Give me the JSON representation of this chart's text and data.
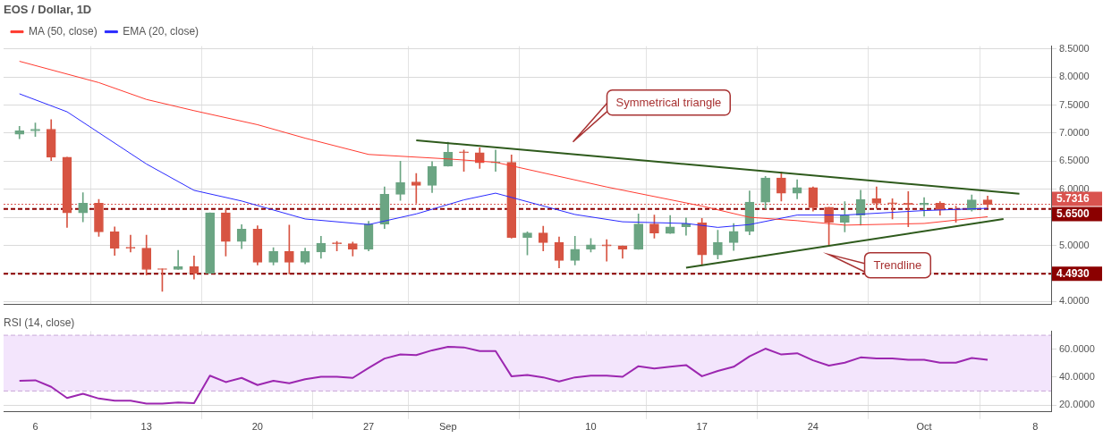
{
  "chart_data": [
    {
      "type": "candlestick",
      "title": "EOS / Dollar, 1D",
      "x": [
        "--08-05",
        "--08-06",
        "--08-07",
        "--08-08",
        "--08-09",
        "--08-10",
        "--08-11",
        "--08-12",
        "--08-13",
        "--08-14",
        "--08-15",
        "--08-16",
        "--08-17",
        "--08-18",
        "--08-19",
        "--08-20",
        "--08-21",
        "--08-22",
        "--08-23",
        "--08-24",
        "--08-25",
        "--08-26",
        "--08-27",
        "--08-28",
        "--08-29",
        "--08-30",
        "--08-31",
        "--09-01",
        "--09-02",
        "--09-03",
        "--09-04",
        "--09-05",
        "--09-06",
        "--09-07",
        "--09-08",
        "--09-09",
        "--09-10",
        "--09-11",
        "--09-12",
        "--09-13",
        "--09-14",
        "--09-15",
        "--09-16",
        "--09-17",
        "--09-18",
        "--09-19",
        "--09-20",
        "--09-21",
        "--09-22",
        "--09-23",
        "--09-24",
        "--09-25",
        "--09-26",
        "--09-27",
        "--09-28",
        "--09-29",
        "--09-30",
        "--10-01",
        "--10-02",
        "--10-03",
        "--10-04",
        "--10-05"
      ],
      "ohlc": [
        [
          6.98,
          7.12,
          6.9,
          7.04
        ],
        [
          7.04,
          7.18,
          6.94,
          7.07
        ],
        [
          7.07,
          7.24,
          6.51,
          6.57
        ],
        [
          6.57,
          6.57,
          5.32,
          5.58
        ],
        [
          5.58,
          5.94,
          5.42,
          5.75
        ],
        [
          5.75,
          5.82,
          5.16,
          5.24
        ],
        [
          5.24,
          5.33,
          4.82,
          4.95
        ],
        [
          4.96,
          5.18,
          4.88,
          4.95
        ],
        [
          4.95,
          5.18,
          4.47,
          4.57
        ],
        [
          4.58,
          4.58,
          4.18,
          4.57
        ],
        [
          4.57,
          4.91,
          4.57,
          4.62
        ],
        [
          4.62,
          4.81,
          4.4,
          4.5
        ],
        [
          4.5,
          5.58,
          4.5,
          5.58
        ],
        [
          5.58,
          5.65,
          4.81,
          5.07
        ],
        [
          5.07,
          5.37,
          4.94,
          5.29
        ],
        [
          5.29,
          5.35,
          4.65,
          4.7
        ],
        [
          4.7,
          4.96,
          4.65,
          4.89
        ],
        [
          4.89,
          5.36,
          4.49,
          4.7
        ],
        [
          4.7,
          4.95,
          4.67,
          4.89
        ],
        [
          4.88,
          5.16,
          4.77,
          5.04
        ],
        [
          5.04,
          5.07,
          4.9,
          5.03
        ],
        [
          5.03,
          5.06,
          4.81,
          4.93
        ],
        [
          4.93,
          5.43,
          4.9,
          5.38
        ],
        [
          5.38,
          6.04,
          5.3,
          5.91
        ],
        [
          5.91,
          6.5,
          5.8,
          6.12
        ],
        [
          6.13,
          6.28,
          5.75,
          6.07
        ],
        [
          6.07,
          6.49,
          5.94,
          6.41
        ],
        [
          6.41,
          6.84,
          6.41,
          6.66
        ],
        [
          6.66,
          6.7,
          6.32,
          6.65
        ],
        [
          6.65,
          6.74,
          6.37,
          6.47
        ],
        [
          6.47,
          6.7,
          6.32,
          6.48
        ],
        [
          6.48,
          6.61,
          5.13,
          5.14
        ],
        [
          5.14,
          5.24,
          4.83,
          5.22
        ],
        [
          5.22,
          5.34,
          4.9,
          5.05
        ],
        [
          5.05,
          5.15,
          4.6,
          4.73
        ],
        [
          4.73,
          5.16,
          4.65,
          4.93
        ],
        [
          4.93,
          5.12,
          4.88,
          5.01
        ],
        [
          5.01,
          5.1,
          4.72,
          4.99
        ],
        [
          4.99,
          4.99,
          4.77,
          4.93
        ],
        [
          4.93,
          5.56,
          4.93,
          5.38
        ],
        [
          5.38,
          5.54,
          5.13,
          5.22
        ],
        [
          5.21,
          5.53,
          5.21,
          5.33
        ],
        [
          5.33,
          5.49,
          5.18,
          5.39
        ],
        [
          5.4,
          5.48,
          4.64,
          4.83
        ],
        [
          4.83,
          5.27,
          4.76,
          5.05
        ],
        [
          5.05,
          5.39,
          4.91,
          5.25
        ],
        [
          5.25,
          5.97,
          5.19,
          5.77
        ],
        [
          5.77,
          6.23,
          5.65,
          6.2
        ],
        [
          6.2,
          6.31,
          5.79,
          5.93
        ],
        [
          5.93,
          6.17,
          5.83,
          6.03
        ],
        [
          6.03,
          6.04,
          5.61,
          5.67
        ],
        [
          5.68,
          5.68,
          5.0,
          5.41
        ],
        [
          5.41,
          5.78,
          5.24,
          5.54
        ],
        [
          5.54,
          5.98,
          5.36,
          5.82
        ],
        [
          5.83,
          6.04,
          5.66,
          5.75
        ],
        [
          5.76,
          5.83,
          5.47,
          5.74
        ],
        [
          5.75,
          5.96,
          5.33,
          5.73
        ],
        [
          5.72,
          5.85,
          5.52,
          5.75
        ],
        [
          5.75,
          5.78,
          5.54,
          5.63
        ],
        [
          5.63,
          5.7,
          5.41,
          5.63
        ],
        [
          5.63,
          5.9,
          5.61,
          5.81
        ],
        [
          5.81,
          5.88,
          5.67,
          5.73
        ]
      ],
      "colors": [
        "#6ba583",
        "#6ba583",
        "#d75442",
        "#d75442",
        "#6ba583",
        "#d75442",
        "#d75442",
        "#d75442",
        "#d75442",
        "#d75442",
        "#6ba583",
        "#d75442",
        "#6ba583",
        "#d75442",
        "#6ba583",
        "#d75442",
        "#6ba583",
        "#d75442",
        "#6ba583",
        "#6ba583",
        "#d75442",
        "#d75442",
        "#6ba583",
        "#6ba583",
        "#6ba583",
        "#d75442",
        "#6ba583",
        "#6ba583",
        "#d75442",
        "#d75442",
        "#6ba583",
        "#d75442",
        "#6ba583",
        "#d75442",
        "#d75442",
        "#6ba583",
        "#6ba583",
        "#d75442",
        "#d75442",
        "#6ba583",
        "#d75442",
        "#6ba583",
        "#6ba583",
        "#d75442",
        "#6ba583",
        "#6ba583",
        "#6ba583",
        "#6ba583",
        "#d75442",
        "#6ba583",
        "#d75442",
        "#d75442",
        "#6ba583",
        "#6ba583",
        "#d75442",
        "#d75442",
        "#d75442",
        "#6ba583",
        "#d75442",
        "#d75442",
        "#6ba583",
        "#d75442"
      ],
      "series": [
        {
          "type": "line",
          "name": "MA (50, close)",
          "color": "#ff3b30",
          "x": [
            "--08-05",
            "--08-10",
            "--08-13",
            "--08-16",
            "--08-20",
            "--08-23",
            "--08-27",
            "--09-01",
            "--09-04",
            "--09-11",
            "--09-17",
            "--09-20",
            "--09-23",
            "--09-26",
            "--10-01",
            "--10-05"
          ],
          "values": [
            8.28,
            7.9,
            7.6,
            7.4,
            7.15,
            6.91,
            6.62,
            6.54,
            6.48,
            6.04,
            5.7,
            5.5,
            5.44,
            5.36,
            5.39,
            5.51
          ]
        },
        {
          "type": "line",
          "name": "EMA (20, close)",
          "color": "#2a2aff",
          "x": [
            "--08-05",
            "--08-08",
            "--08-13",
            "--08-16",
            "--08-19",
            "--08-23",
            "--08-27",
            "--08-30",
            "--09-02",
            "--09-04",
            "--09-09",
            "--09-12",
            "--09-16",
            "--09-18",
            "--09-20",
            "--09-23",
            "--09-26",
            "--10-01",
            "--10-05"
          ],
          "values": [
            7.7,
            7.38,
            6.45,
            5.98,
            5.79,
            5.47,
            5.37,
            5.56,
            5.81,
            5.93,
            5.55,
            5.42,
            5.39,
            5.32,
            5.37,
            5.54,
            5.54,
            5.62,
            5.66
          ]
        },
        {
          "type": "line",
          "color": "#2e5a1c",
          "x": [
            "--08-30",
            "--10-07"
          ],
          "values": [
            6.87,
            5.92
          ]
        },
        {
          "type": "line",
          "color": "#2e5a1c",
          "x": [
            "--09-16",
            "--10-06"
          ],
          "values": [
            4.6,
            5.47
          ]
        }
      ],
      "xlim": [
        "--08-04",
        "--10-09"
      ],
      "xticks": [
        {
          "value": "--08-06",
          "label": "6"
        },
        {
          "value": "--08-13",
          "label": "13"
        },
        {
          "value": "--08-20",
          "label": "20"
        },
        {
          "value": "--08-27",
          "label": "27"
        },
        {
          "value": "--09-01",
          "label": "Sep"
        },
        {
          "value": "--09-10",
          "label": "10"
        },
        {
          "value": "--09-17",
          "label": "17"
        },
        {
          "value": "--09-24",
          "label": "24"
        },
        {
          "value": "--10-01",
          "label": "Oct"
        },
        {
          "value": "--10-08",
          "label": "8"
        }
      ],
      "ylim": [
        3.95,
        8.55
      ],
      "yticks": [
        {
          "value": 4,
          "label": "4.0000"
        },
        {
          "value": 4.5,
          "label": null
        },
        {
          "value": 5,
          "label": "5.0000"
        },
        {
          "value": 5.5,
          "label": null
        },
        {
          "value": 6,
          "label": "6.0000"
        },
        {
          "value": 6.5,
          "label": "6.5000"
        },
        {
          "value": 7,
          "label": "7.0000"
        },
        {
          "value": 7.5,
          "label": "7.5000"
        },
        {
          "value": 8,
          "label": "8.0000"
        },
        {
          "value": 8.5,
          "label": "8.5000"
        }
      ],
      "ref_lines": [
        {
          "axis": "y",
          "value": 5.7316,
          "label": "5.7316",
          "color": "#d9534f",
          "line_style": "dotted"
        },
        {
          "axis": "y",
          "value": 5.65,
          "label": "5.6500",
          "color": "#8b0000",
          "line_style": "dashed"
        },
        {
          "axis": "y",
          "value": 4.493,
          "label": "4.4930",
          "color": "#8b0000",
          "line_style": "dashed"
        }
      ],
      "annotations": [
        "Symmetrical triangle",
        "Trendline"
      ],
      "grid": true,
      "legend": "top left",
      "tick_labels": "y"
    },
    {
      "type": "line",
      "title": "RSI (14, close)",
      "x": [
        "--08-05",
        "--08-06",
        "--08-07",
        "--08-08",
        "--08-09",
        "--08-10",
        "--08-11",
        "--08-12",
        "--08-13",
        "--08-14",
        "--08-15",
        "--08-16",
        "--08-17",
        "--08-18",
        "--08-19",
        "--08-20",
        "--08-21",
        "--08-22",
        "--08-23",
        "--08-24",
        "--08-25",
        "--08-26",
        "--08-27",
        "--08-28",
        "--08-29",
        "--08-30",
        "--08-31",
        "--09-01",
        "--09-02",
        "--09-03",
        "--09-04",
        "--09-05",
        "--09-06",
        "--09-07",
        "--09-08",
        "--09-09",
        "--09-10",
        "--09-11",
        "--09-12",
        "--09-13",
        "--09-14",
        "--09-15",
        "--09-16",
        "--09-17",
        "--09-18",
        "--09-19",
        "--09-20",
        "--09-21",
        "--09-22",
        "--09-23",
        "--09-24",
        "--09-25",
        "--09-26",
        "--09-27",
        "--09-28",
        "--09-29",
        "--09-30",
        "--10-01",
        "--10-02",
        "--10-03",
        "--10-04",
        "--10-05"
      ],
      "series": [
        {
          "color": "#9c27b0",
          "values": [
            37.3,
            37.7,
            33,
            25,
            28,
            24.6,
            23,
            23,
            21,
            21,
            21.7,
            21.3,
            41,
            36.4,
            39.4,
            34.3,
            37.3,
            35.6,
            38.5,
            40.2,
            40.2,
            39.4,
            46.5,
            53.3,
            56.2,
            55.8,
            59.2,
            61.7,
            61.3,
            58.7,
            58.7,
            40.6,
            41.5,
            39.8,
            36.8,
            39.8,
            41,
            41,
            40.2,
            47.8,
            46.1,
            47.4,
            48.6,
            40.6,
            44.4,
            47.4,
            54.9,
            60.4,
            56.2,
            57.1,
            52,
            48.2,
            50.3,
            54.1,
            53.3,
            53.3,
            52.4,
            52.4,
            50.3,
            50.3,
            53.7,
            52.4
          ]
        }
      ],
      "xlim": [
        "--08-04",
        "--10-09"
      ],
      "xticks": [
        {
          "value": "--08-06",
          "label": "6"
        },
        {
          "value": "--08-13",
          "label": "13"
        },
        {
          "value": "--08-20",
          "label": "20"
        },
        {
          "value": "--08-27",
          "label": "27"
        },
        {
          "value": "--09-01",
          "label": "Sep"
        },
        {
          "value": "--09-10",
          "label": "10"
        },
        {
          "value": "--09-17",
          "label": "17"
        },
        {
          "value": "--09-24",
          "label": "24"
        },
        {
          "value": "--10-01",
          "label": "Oct"
        },
        {
          "value": "--10-08",
          "label": "8"
        }
      ],
      "ylim": [
        15,
        73
      ],
      "yticks": [
        {
          "value": 20,
          "label": "20.0000"
        },
        {
          "value": 40,
          "label": "40.0000"
        },
        {
          "value": 60,
          "label": "60.0000"
        }
      ],
      "bands": [
        {
          "axis": "y",
          "from": 30,
          "to": 70,
          "color": "#f3e5fc"
        }
      ],
      "ref_lines": [
        {
          "axis": "y",
          "value": 30,
          "color": "#c8a8d8",
          "line_style": "dashed"
        },
        {
          "axis": "y",
          "value": 70,
          "color": "#c8a8d8",
          "line_style": "dashed"
        }
      ],
      "grid": true
    }
  ]
}
